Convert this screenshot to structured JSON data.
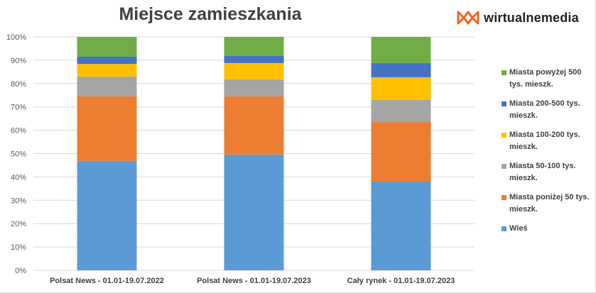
{
  "brand": {
    "logo_text": "wirtualnemedia",
    "logo_color": "#f26522"
  },
  "chart_data": {
    "type": "bar",
    "stacked": "percent",
    "title": "Miejsce zamieszkania",
    "xlabel": "",
    "ylabel": "",
    "ylim": [
      0,
      100
    ],
    "yticks": [
      "0%",
      "10%",
      "20%",
      "30%",
      "40%",
      "50%",
      "60%",
      "70%",
      "80%",
      "90%",
      "100%"
    ],
    "grid": true,
    "legend_position": "right",
    "categories": [
      "Polsat News - 01.01-19.07.2022",
      "Polsat News - 01.01-19.07.2023",
      "Cały rynek - 01.01-19.07.2023"
    ],
    "series": [
      {
        "name": "Wieś",
        "color": "#5b9bd5",
        "values": [
          46.9,
          49.6,
          38.0
        ]
      },
      {
        "name": "Miasta poniżej 50 tys. mieszk.",
        "color": "#ed7d31",
        "values": [
          27.6,
          24.9,
          25.5
        ]
      },
      {
        "name": "Miasta 50-100 tys. mieszk.",
        "color": "#a5a5a5",
        "values": [
          8.5,
          7.3,
          9.5
        ]
      },
      {
        "name": "Miasta 100-200 tys. mieszk.",
        "color": "#ffc000",
        "values": [
          5.4,
          7.0,
          9.7
        ]
      },
      {
        "name": "Miasta 200-500 tys. mieszk.",
        "color": "#4472c4",
        "values": [
          3.1,
          3.0,
          6.1
        ]
      },
      {
        "name": "Miasta powyżej 500 tys. mieszk.",
        "color": "#70ad47",
        "values": [
          8.5,
          8.2,
          11.2
        ]
      }
    ]
  }
}
